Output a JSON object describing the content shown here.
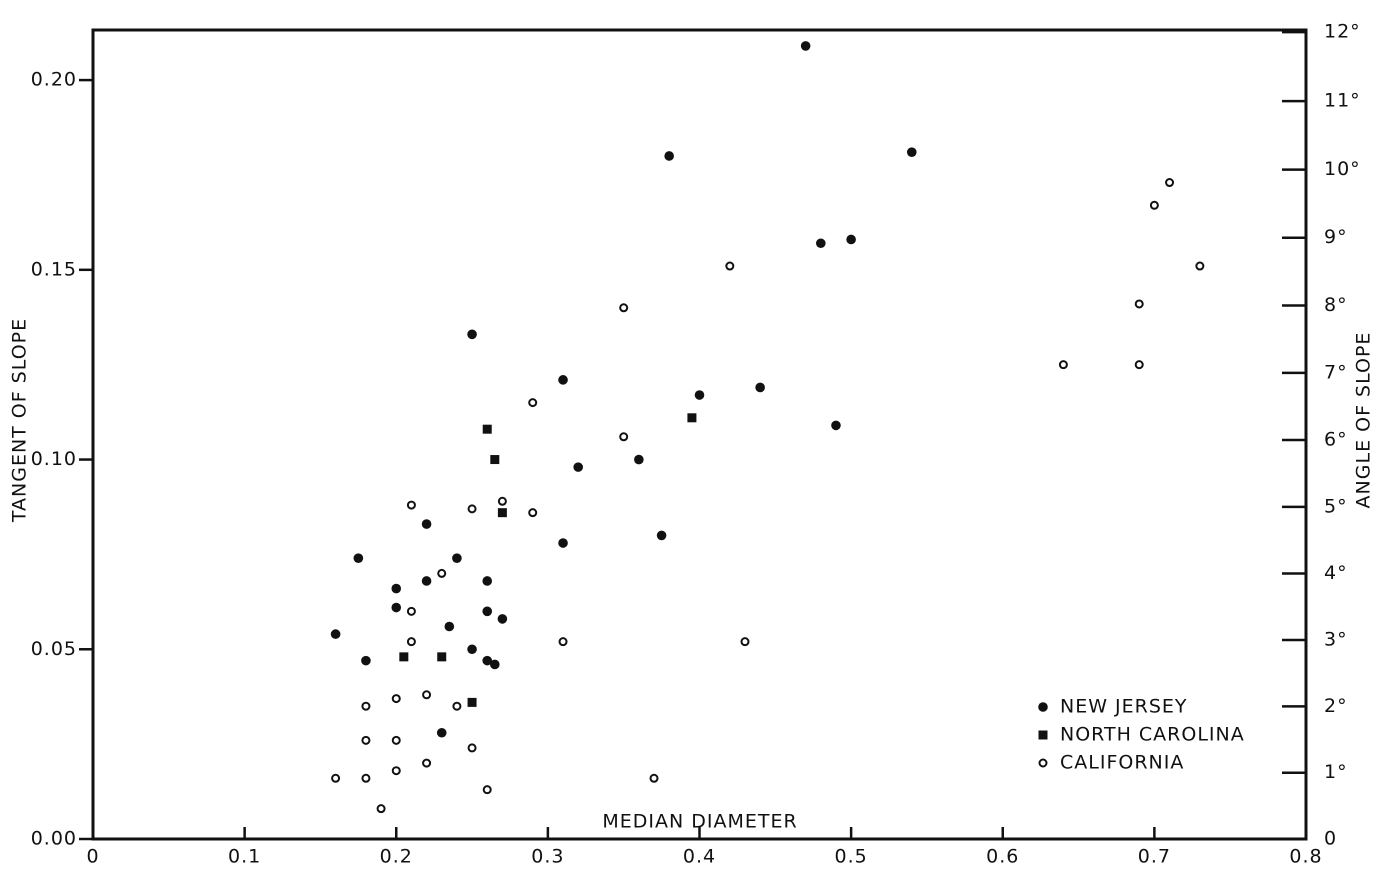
{
  "chart_data": {
    "type": "scatter",
    "xlabel": "MEDIAN DIAMETER",
    "ylabel": "TANGENT OF SLOPE",
    "y2label": "ANGLE OF SLOPE",
    "xlim": [
      0,
      0.8
    ],
    "xticks": [
      0,
      0.1,
      0.2,
      0.3,
      0.4,
      0.5,
      0.6,
      0.7,
      0.8
    ],
    "ylim": [
      0,
      0.2132
    ],
    "yticks": [
      {
        "value": 0,
        "label": "0.00"
      },
      {
        "value": 0.05,
        "label": "0.05"
      },
      {
        "value": 0.1,
        "label": "0.10"
      },
      {
        "value": 0.15,
        "label": "0.15"
      },
      {
        "value": 0.2,
        "label": "0.20"
      }
    ],
    "y2scale": "tangent",
    "y2lim": [
      0,
      12.03
    ],
    "y2ticks": [
      0,
      {
        "value": 1,
        "label": "1°"
      },
      {
        "value": 2,
        "label": "2°"
      },
      {
        "value": 3,
        "label": "3°"
      },
      {
        "value": 4,
        "label": "4°"
      },
      {
        "value": 5,
        "label": "5°"
      },
      {
        "value": 6,
        "label": "6°"
      },
      {
        "value": 7,
        "label": "7°"
      },
      {
        "value": 8,
        "label": "8°"
      },
      {
        "value": 9,
        "label": "9°"
      },
      {
        "value": 10,
        "label": "10°"
      },
      {
        "value": 11,
        "label": "11°"
      },
      {
        "value": 12,
        "label": "12°"
      }
    ],
    "legend": "lower right",
    "series": [
      {
        "name": "NEW JERSEY",
        "color": "#111111",
        "marker": "circle",
        "x": [
          0.16,
          0.175,
          0.18,
          0.2,
          0.2,
          0.22,
          0.22,
          0.235,
          0.24,
          0.25,
          0.25,
          0.26,
          0.26,
          0.26,
          0.265,
          0.27,
          0.23,
          0.31,
          0.31,
          0.32,
          0.36,
          0.375,
          0.38,
          0.4,
          0.44,
          0.47,
          0.48,
          0.5,
          0.49,
          0.54
        ],
        "values": [
          0.054,
          0.074,
          0.047,
          0.066,
          0.061,
          0.083,
          0.068,
          0.056,
          0.074,
          0.133,
          0.05,
          0.068,
          0.06,
          0.047,
          0.046,
          0.058,
          0.028,
          0.121,
          0.078,
          0.098,
          0.1,
          0.08,
          0.18,
          0.117,
          0.119,
          0.209,
          0.157,
          0.158,
          0.109,
          0.181
        ]
      },
      {
        "name": "NORTH CAROLINA",
        "color": "#111111",
        "marker": "square",
        "x": [
          0.205,
          0.23,
          0.25,
          0.26,
          0.265,
          0.27,
          0.395
        ],
        "values": [
          0.048,
          0.048,
          0.036,
          0.108,
          0.1,
          0.086,
          0.111
        ]
      },
      {
        "name": "CALIFORNIA",
        "color": "#111111",
        "marker": "open-circle",
        "x": [
          0.16,
          0.18,
          0.18,
          0.18,
          0.19,
          0.2,
          0.2,
          0.2,
          0.21,
          0.21,
          0.21,
          0.22,
          0.22,
          0.23,
          0.24,
          0.25,
          0.25,
          0.26,
          0.27,
          0.29,
          0.29,
          0.31,
          0.35,
          0.35,
          0.37,
          0.42,
          0.43,
          0.64,
          0.69,
          0.69,
          0.7,
          0.71,
          0.73
        ],
        "values": [
          0.016,
          0.016,
          0.026,
          0.035,
          0.008,
          0.018,
          0.026,
          0.037,
          0.088,
          0.06,
          0.052,
          0.038,
          0.02,
          0.07,
          0.035,
          0.087,
          0.024,
          0.013,
          0.089,
          0.115,
          0.086,
          0.052,
          0.14,
          0.106,
          0.016,
          0.151,
          0.052,
          0.125,
          0.141,
          0.125,
          0.167,
          0.173,
          0.151
        ]
      }
    ]
  }
}
